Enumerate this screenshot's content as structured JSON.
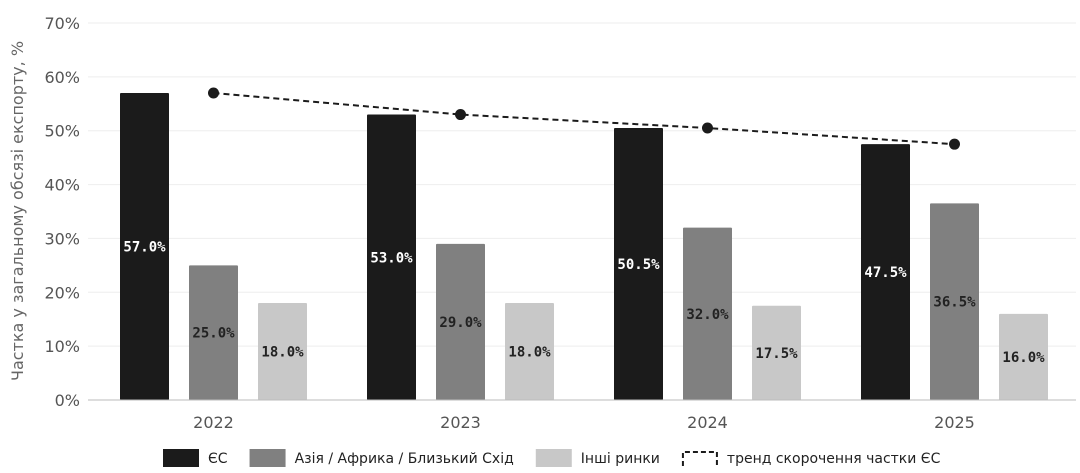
{
  "chart_data": {
    "type": "bar",
    "categories": [
      "2022",
      "2023",
      "2024",
      "2025"
    ],
    "series": [
      {
        "name": "ЄС",
        "values": [
          57.0,
          53.0,
          50.5,
          47.5
        ],
        "color": "#1b1b1b",
        "label_color": "#ffffff"
      },
      {
        "name": "Азія / Африка / Близький Схід",
        "values": [
          25.0,
          29.0,
          32.0,
          36.5
        ],
        "color": "#808080",
        "label_color": "#222222"
      },
      {
        "name": "Інші ринки",
        "values": [
          18.0,
          18.0,
          17.5,
          16.0
        ],
        "color": "#c8c8c8",
        "label_color": "#222222"
      }
    ],
    "trend": {
      "name": "тренд скорочення частки ЄС",
      "values": [
        57.0,
        53.0,
        50.5,
        47.5
      ],
      "color": "#1b1b1b",
      "style": "dashed"
    },
    "data_labels": [
      [
        "57.0%",
        "53.0%",
        "50.5%",
        "47.5%"
      ],
      [
        "25.0%",
        "29.0%",
        "32.0%",
        "36.5%"
      ],
      [
        "18.0%",
        "18.0%",
        "17.5%",
        "16.0%"
      ]
    ],
    "ylabel": "Частка у загальному обсязі експорту, %",
    "xlabel": "",
    "ylim": [
      0,
      70
    ],
    "yticks": [
      0,
      10,
      20,
      30,
      40,
      50,
      60,
      70
    ],
    "ytick_labels": [
      "0%",
      "10%",
      "20%",
      "30%",
      "40%",
      "50%",
      "60%",
      "70%"
    ],
    "grid": true,
    "legend_position": "bottom-center"
  }
}
